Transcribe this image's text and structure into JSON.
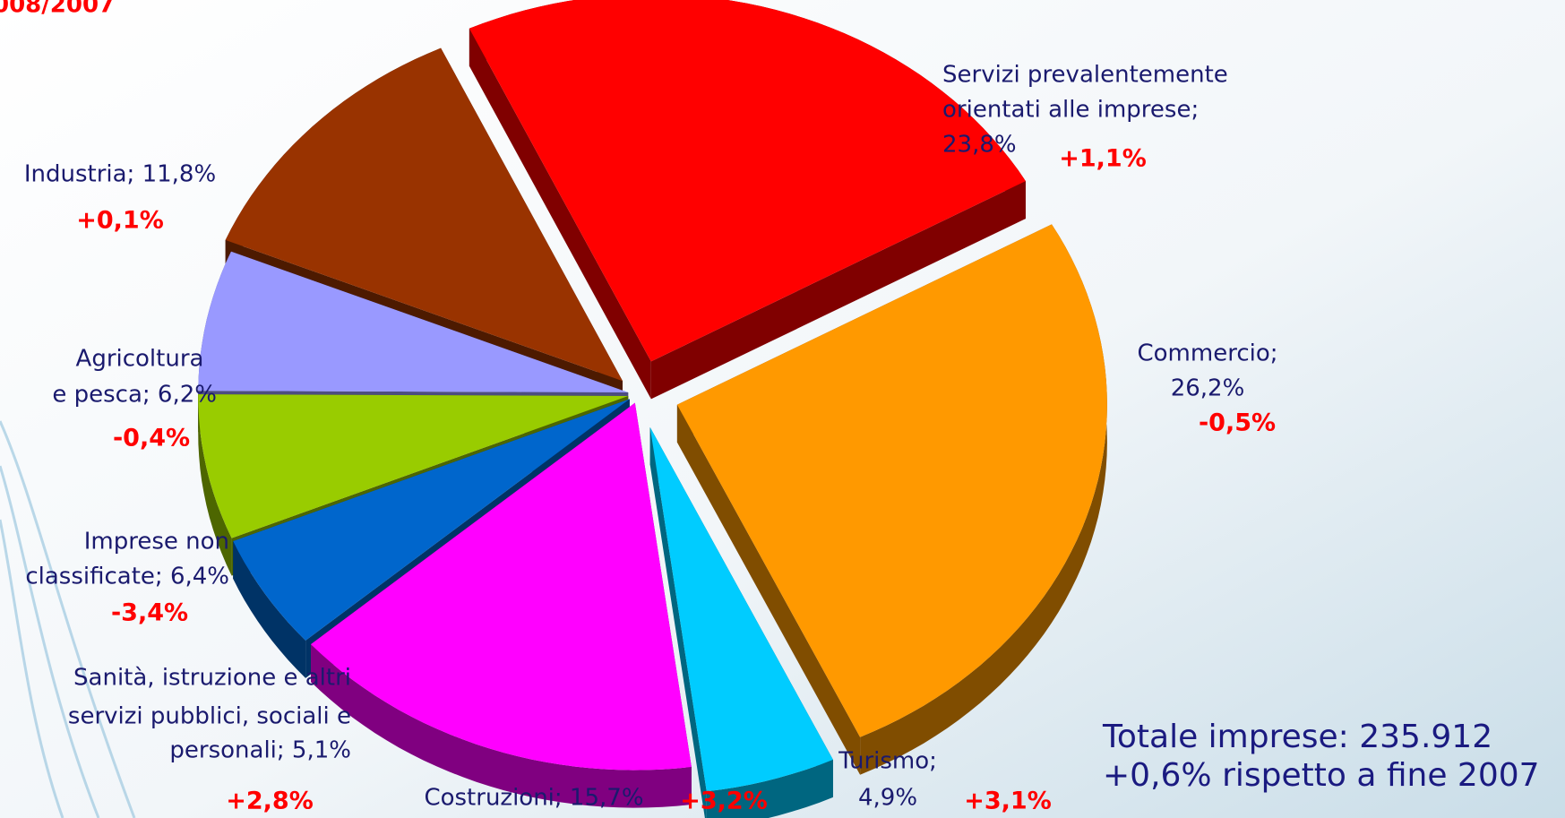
{
  "chart_data": {
    "type": "pie",
    "title": "008/2007",
    "labels": [
      [
        "Servizi prevalentemente",
        "orientati alle imprese;",
        "23,8%"
      ],
      [
        "Commercio;",
        "26,2%"
      ],
      [
        "Turismo;",
        "4,9%"
      ],
      [
        "Costruzioni; 15,7%"
      ],
      [
        "Sanità, istruzione e altri",
        "servizi pubblici, sociali e",
        "personali; 5,1%"
      ],
      [
        "Imprese non",
        "classificate; 6,4%"
      ],
      [
        "Agricoltura",
        "e pesca; 6,2%"
      ],
      [
        "Industria; 11,8%"
      ]
    ],
    "values": [
      23.8,
      26.2,
      4.9,
      15.7,
      5.1,
      6.4,
      6.2,
      11.8
    ],
    "colors": [
      "#ff0000",
      "#ff9900",
      "#00ccff",
      "#ff00ff",
      "#0066cc",
      "#99cc00",
      "#9999ff",
      "#993300"
    ],
    "changes": [
      1.1,
      -0.5,
      3.1,
      3.2,
      2.8,
      -3.4,
      -0.4,
      0.1
    ],
    "change_labels": [
      "+1,1%",
      "-0,5%",
      "+3,1%",
      "+3,2%",
      "+2,8%",
      "-3,4%",
      "-0,4%",
      "+0,1%"
    ],
    "annotations": [
      "Totale imprese: 235.912",
      "+0,6% rispetto a fine 2007"
    ]
  }
}
